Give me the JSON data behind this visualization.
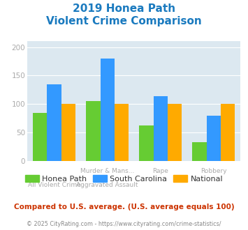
{
  "title_line1": "2019 Honea Path",
  "title_line2": "Violent Crime Comparison",
  "series": {
    "Honea Path": [
      85,
      105,
      63,
      33
    ],
    "South Carolina": [
      135,
      180,
      114,
      79
    ],
    "National": [
      100,
      100,
      100,
      100
    ]
  },
  "colors": {
    "Honea Path": "#66cc33",
    "South Carolina": "#3399ff",
    "National": "#ffaa00"
  },
  "line1_labels": [
    "",
    "Murder & Mans...",
    "Rape",
    "Robbery"
  ],
  "line2_labels": [
    "All Violent Crime",
    "Aggravated Assault",
    "",
    ""
  ],
  "ylim": [
    0,
    210
  ],
  "yticks": [
    0,
    50,
    100,
    150,
    200
  ],
  "plot_bg_color": "#dce8f0",
  "title_color": "#1a7abf",
  "footer_text": "Compared to U.S. average. (U.S. average equals 100)",
  "copyright_text": "© 2025 CityRating.com - https://www.cityrating.com/crime-statistics/",
  "footer_color": "#cc3300",
  "copyright_color": "#888888",
  "grid_color": "#ffffff",
  "tick_label_color": "#aaaaaa",
  "legend_text_color": "#333333"
}
